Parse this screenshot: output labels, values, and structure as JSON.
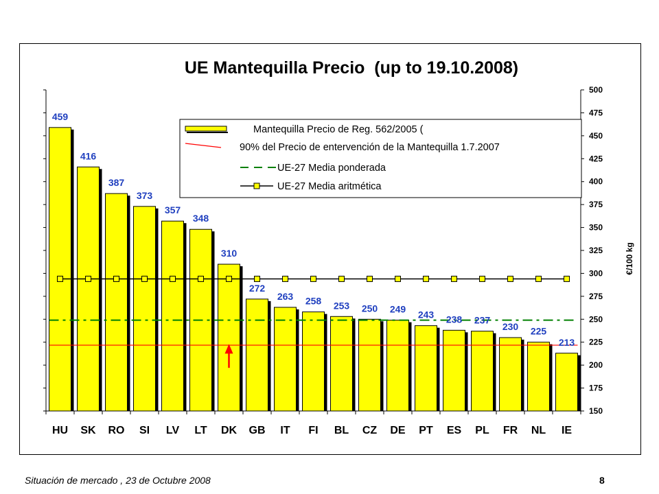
{
  "chart_data": {
    "type": "bar",
    "title": "UE Mantequilla Precio  (up to 19.10.2008)",
    "xlabel": "",
    "ylabel": "€/100 kg",
    "ylim": [
      150,
      500
    ],
    "yticks": [
      150,
      175,
      200,
      225,
      250,
      275,
      300,
      325,
      350,
      375,
      400,
      425,
      450,
      475,
      500
    ],
    "y_axis_side": "right",
    "grid": false,
    "legend_position": "top-right",
    "categories": [
      "HU",
      "SK",
      "RO",
      "SI",
      "LV",
      "LT",
      "DK",
      "GB",
      "IT",
      "FI",
      "BL",
      "CZ",
      "DE",
      "PT",
      "ES",
      "PL",
      "FR",
      "NL",
      "IE"
    ],
    "series": [
      {
        "name": "Mantequilla Precio de Reg. 562/2005 (",
        "kind": "bar",
        "color": "#ffff00",
        "values": [
          459,
          416,
          387,
          373,
          357,
          348,
          310,
          272,
          263,
          258,
          253,
          250,
          249,
          243,
          238,
          237,
          230,
          225,
          213
        ],
        "data_labels": [
          "459",
          "416",
          "387",
          "373",
          "357",
          "348",
          "310",
          "272",
          "263",
          "258",
          "253",
          "250",
          "249",
          "243",
          "238",
          "237",
          "230",
          "225",
          "213"
        ]
      },
      {
        "name": "90% del Precio de entervención de la Mantequilla  1.7.2007",
        "kind": "hline",
        "color": "#ff0000",
        "value": 221.75
      },
      {
        "name": "UE-27  Media ponderada",
        "kind": "hline-dashed",
        "color": "#008000",
        "value": 249
      },
      {
        "name": "UE-27  Media aritmética",
        "kind": "line-markers",
        "color": "#000000",
        "marker_color": "#ffff00",
        "value": 294
      }
    ],
    "annotations": [
      {
        "kind": "arrow",
        "color": "#ff0000",
        "category": "DK",
        "from": 197,
        "to": 223
      }
    ]
  },
  "footer": {
    "source": "Situación de mercado , 23 de  Octubre 2008",
    "page": "8"
  }
}
